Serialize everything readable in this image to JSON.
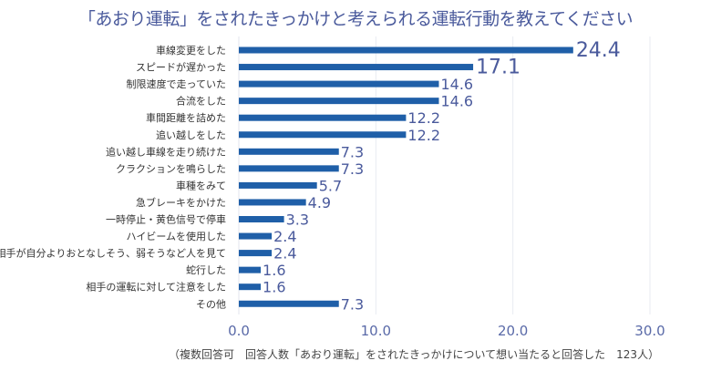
{
  "chart_data": {
    "type": "bar",
    "orientation": "horizontal",
    "title": "「あおり運転」をされたきっかけと考えられる運転行動を教えてください",
    "xlabel": "",
    "ylabel": "",
    "xlim": [
      0,
      30
    ],
    "xticks": [
      "0.0",
      "10.0",
      "20.0",
      "30.0"
    ],
    "grid": true,
    "legend": "none",
    "bar_color": "#1f5fa8",
    "categories": [
      "車線変更をした",
      "スピードが遅かった",
      "制限速度で走っていた",
      "合流をした",
      "車間距離を詰めた",
      "追い越しをした",
      "追い越し車線を走り続けた",
      "クラクションを鳴らした",
      "車種をみて",
      "急ブレーキをかけた",
      "一時停止・黄色信号で停車",
      "ハイビームを使用した",
      "相手が自分よりおとなしそう、弱そうなど人を見て",
      "蛇行した",
      "相手の運転に対して注意をした",
      "その他"
    ],
    "values": [
      24.4,
      17.1,
      14.6,
      14.6,
      12.2,
      12.2,
      7.3,
      7.3,
      5.7,
      4.9,
      3.3,
      2.4,
      2.4,
      1.6,
      1.6,
      7.3
    ],
    "value_labels": [
      "24.4",
      "17.1",
      "14.6",
      "14.6",
      "12.2",
      "12.2",
      "7.3",
      "7.3",
      "5.7",
      "4.9",
      "3.3",
      "2.4",
      "2.4",
      "1.6",
      "1.6",
      "7.3"
    ],
    "footnote": "（複数回答可　回答人数「あおり運転」をされたきっかけについて想い当たると回答した　123人）"
  }
}
